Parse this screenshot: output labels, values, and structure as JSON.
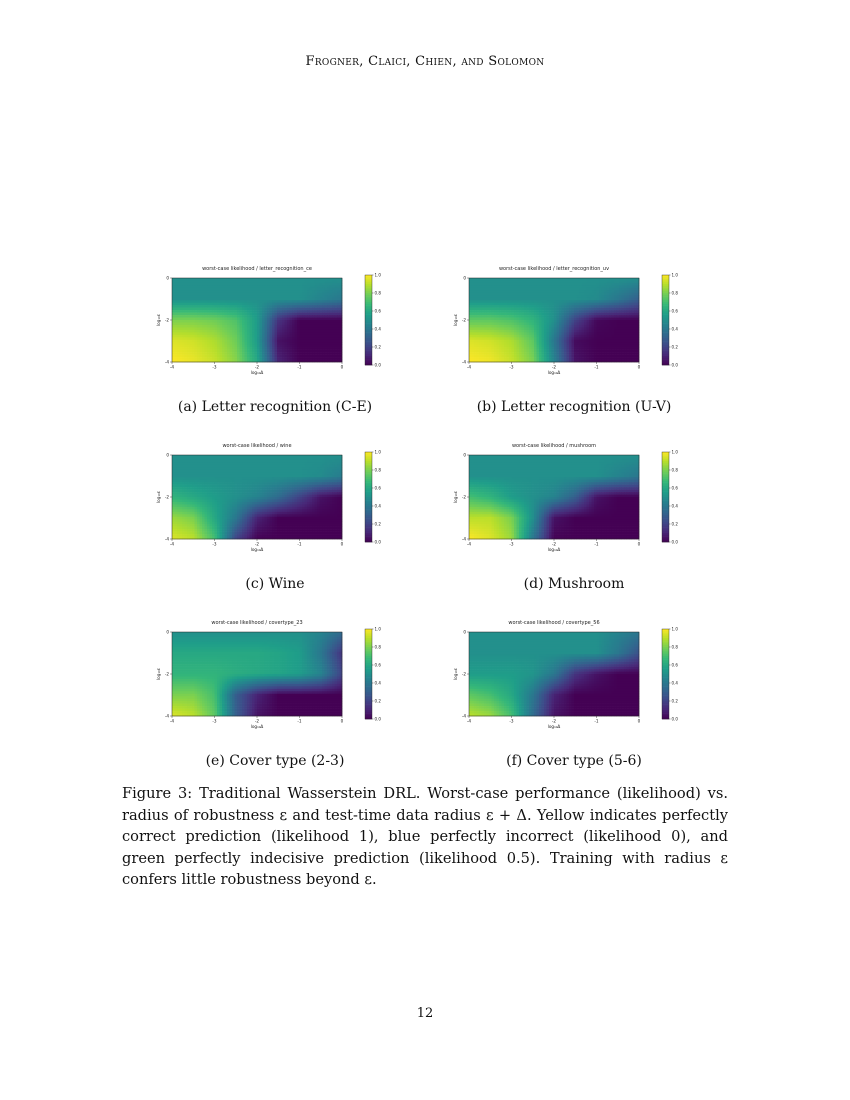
{
  "header": "Frogner, Claici, Chien, and Solomon",
  "figure_caption": "Figure 3: Traditional Wasserstein DRL. Worst-case performance (likelihood) vs. radius of robustness ε and test-time data radius ε + Δ. Yellow indicates perfectly correct prediction (likelihood 1), blue perfectly incorrect (likelihood 0), and green perfectly indecisive prediction (likelihood 0.5). Training with radius ε confers little robustness beyond ε.",
  "page_number": "12",
  "chart_data": [
    {
      "type": "heatmap",
      "title": "worst-case likelihood / letter_recognition_ce",
      "subcaption": "(a) Letter recognition (C-E)",
      "xlabel": "log₁₀Δ",
      "ylabel": "log₁₀ε",
      "xticks": [
        "-4",
        "-3",
        "-2",
        "-1",
        "0"
      ],
      "yticks": [
        "0",
        "-2",
        "-4"
      ],
      "colorbar_ticks": [
        "0.0",
        "0.2",
        "0.4",
        "0.6",
        "0.8",
        "1.0"
      ],
      "x": [
        -4,
        -3.5,
        -3,
        -2.5,
        -2,
        -1.5,
        -1,
        -0.5,
        0
      ],
      "y": [
        0,
        -1,
        -2,
        -3,
        -4
      ],
      "values": [
        [
          0.5,
          0.5,
          0.5,
          0.5,
          0.5,
          0.5,
          0.5,
          0.5,
          0.5
        ],
        [
          0.5,
          0.5,
          0.5,
          0.5,
          0.5,
          0.5,
          0.5,
          0.45,
          0.4
        ],
        [
          0.8,
          0.8,
          0.78,
          0.72,
          0.55,
          0.15,
          0,
          0,
          0
        ],
        [
          0.95,
          0.93,
          0.88,
          0.78,
          0.55,
          0.05,
          0,
          0,
          0
        ],
        [
          1,
          0.97,
          0.92,
          0.82,
          0.6,
          0.1,
          0,
          0,
          0
        ]
      ]
    },
    {
      "type": "heatmap",
      "title": "worst-case likelihood / letter_recognition_uv",
      "subcaption": "(b) Letter recognition (U-V)",
      "xlabel": "log₁₀Δ",
      "ylabel": "log₁₀ε",
      "xticks": [
        "-4",
        "-3",
        "-2",
        "-1",
        "0"
      ],
      "yticks": [
        "0",
        "-2",
        "-4"
      ],
      "colorbar_ticks": [
        "0.0",
        "0.2",
        "0.4",
        "0.6",
        "0.8",
        "1.0"
      ],
      "x": [
        -4,
        -3.5,
        -3,
        -2.5,
        -2,
        -1.5,
        -1,
        -0.5,
        0
      ],
      "y": [
        0,
        -1,
        -2,
        -3,
        -4
      ],
      "values": [
        [
          0.5,
          0.5,
          0.5,
          0.5,
          0.5,
          0.5,
          0.5,
          0.5,
          0.5
        ],
        [
          0.5,
          0.5,
          0.5,
          0.5,
          0.5,
          0.5,
          0.48,
          0.4,
          0.3
        ],
        [
          0.75,
          0.75,
          0.72,
          0.65,
          0.5,
          0.2,
          0.02,
          0,
          0
        ],
        [
          0.95,
          0.93,
          0.88,
          0.75,
          0.4,
          0.03,
          0,
          0,
          0
        ],
        [
          1,
          0.98,
          0.92,
          0.8,
          0.45,
          0.05,
          0,
          0,
          0
        ]
      ]
    },
    {
      "type": "heatmap",
      "title": "worst-case likelihood / wine",
      "subcaption": "(c) Wine",
      "xlabel": "log₁₀Δ",
      "ylabel": "log₁₀ε",
      "xticks": [
        "-4",
        "-3",
        "-2",
        "-1",
        "0"
      ],
      "yticks": [
        "0",
        "-2",
        "-4"
      ],
      "colorbar_ticks": [
        "0.0",
        "0.2",
        "0.4",
        "0.6",
        "0.8",
        "1.0"
      ],
      "x": [
        -4,
        -3.5,
        -3,
        -2.5,
        -2,
        -1.5,
        -1,
        -0.5,
        0
      ],
      "y": [
        0,
        -1,
        -2,
        -3,
        -4
      ],
      "values": [
        [
          0.5,
          0.5,
          0.5,
          0.5,
          0.5,
          0.5,
          0.5,
          0.5,
          0.5
        ],
        [
          0.5,
          0.5,
          0.5,
          0.5,
          0.5,
          0.5,
          0.5,
          0.48,
          0.42
        ],
        [
          0.65,
          0.6,
          0.55,
          0.5,
          0.45,
          0.35,
          0.2,
          0.05,
          0
        ],
        [
          0.85,
          0.8,
          0.6,
          0.4,
          0.1,
          0,
          0,
          0,
          0
        ],
        [
          0.95,
          0.9,
          0.7,
          0.2,
          0,
          0,
          0,
          0,
          0
        ]
      ]
    },
    {
      "type": "heatmap",
      "title": "worst-case likelihood / mushroom",
      "subcaption": "(d) Mushroom",
      "xlabel": "log₁₀Δ",
      "ylabel": "log₁₀ε",
      "xticks": [
        "-4",
        "-3",
        "-2",
        "-1",
        "0"
      ],
      "yticks": [
        "0",
        "-2",
        "-4"
      ],
      "colorbar_ticks": [
        "0.0",
        "0.2",
        "0.4",
        "0.6",
        "0.8",
        "1.0"
      ],
      "x": [
        -4,
        -3.5,
        -3,
        -2.5,
        -2,
        -1.5,
        -1,
        -0.5,
        0
      ],
      "y": [
        0,
        -1,
        -2,
        -3,
        -4
      ],
      "values": [
        [
          0.5,
          0.5,
          0.5,
          0.5,
          0.5,
          0.5,
          0.5,
          0.5,
          0.5
        ],
        [
          0.5,
          0.5,
          0.5,
          0.5,
          0.5,
          0.5,
          0.5,
          0.45,
          0.4
        ],
        [
          0.7,
          0.65,
          0.55,
          0.5,
          0.45,
          0.3,
          0.05,
          0,
          0
        ],
        [
          0.9,
          0.9,
          0.8,
          0.5,
          0.05,
          0,
          0,
          0,
          0
        ],
        [
          1,
          0.95,
          0.85,
          0.4,
          0,
          0,
          0,
          0,
          0
        ]
      ]
    },
    {
      "type": "heatmap",
      "title": "worst-case likelihood / covertype_23",
      "subcaption": "(e) Cover type (2-3)",
      "xlabel": "log₁₀Δ",
      "ylabel": "log₁₀ε",
      "xticks": [
        "-4",
        "-3",
        "-2",
        "-1",
        "0"
      ],
      "yticks": [
        "0",
        "-2",
        "-4"
      ],
      "colorbar_ticks": [
        "0.0",
        "0.2",
        "0.4",
        "0.6",
        "0.8",
        "1.0"
      ],
      "x": [
        -4,
        -3.5,
        -3,
        -2.5,
        -2,
        -1.5,
        -1,
        -0.5,
        0
      ],
      "y": [
        0,
        -1,
        -2,
        -3,
        -4
      ],
      "values": [
        [
          0.5,
          0.5,
          0.5,
          0.5,
          0.5,
          0.5,
          0.5,
          0.45,
          0.35
        ],
        [
          0.6,
          0.6,
          0.6,
          0.6,
          0.6,
          0.58,
          0.55,
          0.4,
          0.15
        ],
        [
          0.65,
          0.65,
          0.65,
          0.62,
          0.6,
          0.58,
          0.55,
          0.45,
          0.2
        ],
        [
          0.8,
          0.8,
          0.7,
          0.3,
          0.1,
          0,
          0,
          0,
          0
        ],
        [
          0.95,
          0.9,
          0.75,
          0.3,
          0.05,
          0,
          0,
          0,
          0
        ]
      ]
    },
    {
      "type": "heatmap",
      "title": "worst-case likelihood / covertype_56",
      "subcaption": "(f) Cover type (5-6)",
      "xlabel": "log₁₀Δ",
      "ylabel": "log₁₀ε",
      "xticks": [
        "-4",
        "-3",
        "-2",
        "-1",
        "0"
      ],
      "yticks": [
        "0",
        "-2",
        "-4"
      ],
      "colorbar_ticks": [
        "0.0",
        "0.2",
        "0.4",
        "0.6",
        "0.8",
        "1.0"
      ],
      "x": [
        -4,
        -3.5,
        -3,
        -2.5,
        -2,
        -1.5,
        -1,
        -0.5,
        0
      ],
      "y": [
        0,
        -1,
        -2,
        -3,
        -4
      ],
      "values": [
        [
          0.5,
          0.5,
          0.5,
          0.5,
          0.5,
          0.5,
          0.5,
          0.45,
          0.4
        ],
        [
          0.5,
          0.5,
          0.5,
          0.5,
          0.5,
          0.5,
          0.5,
          0.4,
          0.25
        ],
        [
          0.55,
          0.55,
          0.55,
          0.52,
          0.4,
          0.15,
          0.05,
          0,
          0
        ],
        [
          0.75,
          0.7,
          0.6,
          0.4,
          0.1,
          0,
          0,
          0,
          0
        ],
        [
          0.9,
          0.85,
          0.7,
          0.35,
          0.05,
          0,
          0,
          0,
          0
        ]
      ]
    }
  ]
}
